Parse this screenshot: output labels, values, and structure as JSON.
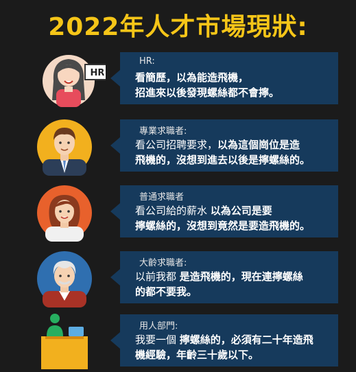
{
  "title": "2022年人才市場現狀:",
  "rows": [
    {
      "role": "HR:",
      "line1": "看簡歷，以為能造飛機，",
      "line2": "招進來以後發現螺絲都不會擰。"
    },
    {
      "role": "專業求職者:",
      "line1a": "看公司招聘要求，",
      "line1b": "以為這個崗位是造",
      "line2": "飛機的，沒想到進去以後是擰螺絲的。"
    },
    {
      "role": "普通求職者",
      "line1a": "看公司給的薪水",
      "line1b": "以為公司是要",
      "line2": "擰螺絲的，沒想到竟然是要造飛機的。"
    },
    {
      "role": "大齡求職者:",
      "line1a": "以前我都",
      "line1b": "是造飛機的，現在連擰螺絲",
      "line2": "的都不要我。"
    },
    {
      "role": "用人部門:",
      "line1a": "我要一個",
      "line1b": "擰螺絲的，必須有二十年造飛",
      "line2": "機經驗，年齡三十歲以下。"
    }
  ],
  "hr_sign": "HR",
  "colors": {
    "title": "#f5c518",
    "bubble": "#163a5c",
    "background": "#1b1b1b"
  }
}
